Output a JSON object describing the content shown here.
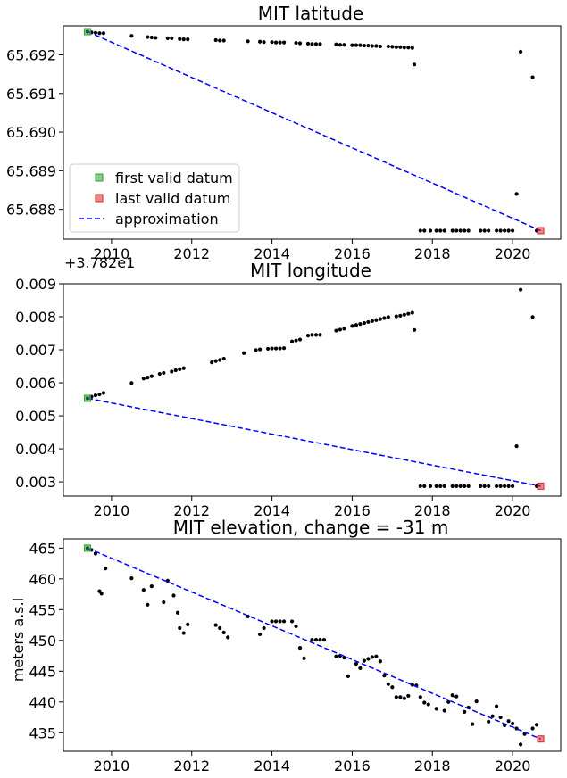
{
  "chart_data": [
    {
      "type": "scatter",
      "title": "MIT latitude",
      "xlim": [
        2008.8,
        2021.2
      ],
      "ylim": [
        65.68723,
        65.69275
      ],
      "x_ticks": [
        "2010",
        "2012",
        "2014",
        "2016",
        "2018",
        "2020"
      ],
      "y_ticks": [
        "65.688",
        "65.689",
        "65.690",
        "65.691",
        "65.692"
      ],
      "y_offset_label": "",
      "ylabel": "",
      "legend": {
        "placement": "lower-left",
        "entries": [
          {
            "label": "first valid datum",
            "color": "#2ca02c",
            "marker": "square"
          },
          {
            "label": "last valid datum",
            "color": "#d62728",
            "marker": "square"
          },
          {
            "label": "approximation",
            "color": "#0000ff",
            "marker": "dashed-line"
          }
        ]
      },
      "points": [
        [
          2009.4,
          65.6926
        ],
        [
          2009.5,
          65.69258
        ],
        [
          2009.6,
          65.69257
        ],
        [
          2009.7,
          65.69256
        ],
        [
          2009.8,
          65.69256
        ],
        [
          2010.5,
          65.69249
        ],
        [
          2010.9,
          65.69246
        ],
        [
          2011.0,
          65.69245
        ],
        [
          2011.1,
          65.69244
        ],
        [
          2011.4,
          65.69243
        ],
        [
          2011.5,
          65.69243
        ],
        [
          2011.7,
          65.69241
        ],
        [
          2011.8,
          65.6924
        ],
        [
          2011.9,
          65.6924
        ],
        [
          2012.6,
          65.69238
        ],
        [
          2012.7,
          65.69237
        ],
        [
          2012.8,
          65.69237
        ],
        [
          2013.4,
          65.69235
        ],
        [
          2013.7,
          65.69234
        ],
        [
          2013.8,
          65.69233
        ],
        [
          2014.0,
          65.69233
        ],
        [
          2014.1,
          65.69232
        ],
        [
          2014.2,
          65.69232
        ],
        [
          2014.3,
          65.69232
        ],
        [
          2014.6,
          65.69231
        ],
        [
          2014.7,
          65.6923
        ],
        [
          2014.9,
          65.69229
        ],
        [
          2015.0,
          65.69228
        ],
        [
          2015.1,
          65.69228
        ],
        [
          2015.2,
          65.69228
        ],
        [
          2015.6,
          65.69227
        ],
        [
          2015.7,
          65.69226
        ],
        [
          2015.8,
          65.69226
        ],
        [
          2016.0,
          65.69225
        ],
        [
          2016.1,
          65.69225
        ],
        [
          2016.2,
          65.69225
        ],
        [
          2016.3,
          65.69224
        ],
        [
          2016.4,
          65.69224
        ],
        [
          2016.5,
          65.69223
        ],
        [
          2016.6,
          65.69223
        ],
        [
          2016.7,
          65.69222
        ],
        [
          2016.9,
          65.69222
        ],
        [
          2017.0,
          65.69221
        ],
        [
          2017.1,
          65.6922
        ],
        [
          2017.2,
          65.6922
        ],
        [
          2017.3,
          65.69219
        ],
        [
          2017.4,
          65.69219
        ],
        [
          2017.5,
          65.69218
        ],
        [
          2017.55,
          65.69175
        ],
        [
          2017.7,
          65.68745
        ],
        [
          2017.8,
          65.68745
        ],
        [
          2017.95,
          65.68745
        ],
        [
          2018.1,
          65.68745
        ],
        [
          2018.2,
          65.68745
        ],
        [
          2018.3,
          65.68745
        ],
        [
          2018.5,
          65.68745
        ],
        [
          2018.6,
          65.68745
        ],
        [
          2018.7,
          65.68745
        ],
        [
          2018.8,
          65.68745
        ],
        [
          2018.9,
          65.68745
        ],
        [
          2019.2,
          65.68745
        ],
        [
          2019.3,
          65.68745
        ],
        [
          2019.4,
          65.68745
        ],
        [
          2019.6,
          65.68745
        ],
        [
          2019.7,
          65.68745
        ],
        [
          2019.8,
          65.68745
        ],
        [
          2019.9,
          65.68745
        ],
        [
          2020.0,
          65.68745
        ],
        [
          2020.1,
          65.6884
        ],
        [
          2020.2,
          65.69208
        ],
        [
          2020.5,
          65.69142
        ],
        [
          2020.6,
          65.68745
        ]
      ],
      "first_valid": [
        2009.4,
        65.6926
      ],
      "last_valid": [
        2020.7,
        65.68745
      ]
    },
    {
      "type": "scatter",
      "title": "MIT longitude",
      "xlim": [
        2008.8,
        2021.2
      ],
      "ylim": [
        0.00257,
        0.009
      ],
      "x_ticks": [
        "2010",
        "2012",
        "2014",
        "2016",
        "2018",
        "2020"
      ],
      "y_ticks": [
        "0.003",
        "0.004",
        "0.005",
        "0.006",
        "0.007",
        "0.008",
        "0.009"
      ],
      "y_offset_label": "+3.782e1",
      "ylabel": "",
      "points": [
        [
          2009.4,
          0.00553
        ],
        [
          2009.5,
          0.00558
        ],
        [
          2009.6,
          0.00562
        ],
        [
          2009.7,
          0.00565
        ],
        [
          2009.8,
          0.00569
        ],
        [
          2010.5,
          0.00599
        ],
        [
          2010.8,
          0.00613
        ],
        [
          2010.9,
          0.00616
        ],
        [
          2011.0,
          0.0062
        ],
        [
          2011.2,
          0.00627
        ],
        [
          2011.3,
          0.0063
        ],
        [
          2011.5,
          0.00634
        ],
        [
          2011.6,
          0.00638
        ],
        [
          2011.7,
          0.00641
        ],
        [
          2011.8,
          0.00644
        ],
        [
          2012.5,
          0.00662
        ],
        [
          2012.6,
          0.00666
        ],
        [
          2012.7,
          0.00669
        ],
        [
          2012.8,
          0.00673
        ],
        [
          2013.3,
          0.0069
        ],
        [
          2013.6,
          0.00699
        ],
        [
          2013.7,
          0.00701
        ],
        [
          2013.9,
          0.00703
        ],
        [
          2014.0,
          0.00704
        ],
        [
          2014.1,
          0.00704
        ],
        [
          2014.2,
          0.00704
        ],
        [
          2014.3,
          0.00705
        ],
        [
          2014.5,
          0.00725
        ],
        [
          2014.6,
          0.00728
        ],
        [
          2014.7,
          0.00731
        ],
        [
          2014.9,
          0.00743
        ],
        [
          2015.0,
          0.00745
        ],
        [
          2015.1,
          0.00745
        ],
        [
          2015.2,
          0.00745
        ],
        [
          2015.6,
          0.00758
        ],
        [
          2015.7,
          0.00761
        ],
        [
          2015.8,
          0.00764
        ],
        [
          2016.0,
          0.00772
        ],
        [
          2016.1,
          0.00775
        ],
        [
          2016.2,
          0.00778
        ],
        [
          2016.3,
          0.00781
        ],
        [
          2016.4,
          0.00784
        ],
        [
          2016.5,
          0.00787
        ],
        [
          2016.6,
          0.0079
        ],
        [
          2016.7,
          0.00793
        ],
        [
          2016.8,
          0.00796
        ],
        [
          2016.9,
          0.00799
        ],
        [
          2017.1,
          0.00801
        ],
        [
          2017.2,
          0.00803
        ],
        [
          2017.3,
          0.00806
        ],
        [
          2017.4,
          0.00809
        ],
        [
          2017.5,
          0.00812
        ],
        [
          2017.55,
          0.0076
        ],
        [
          2017.7,
          0.00287
        ],
        [
          2017.8,
          0.00287
        ],
        [
          2017.95,
          0.00287
        ],
        [
          2018.1,
          0.00287
        ],
        [
          2018.2,
          0.00287
        ],
        [
          2018.3,
          0.00287
        ],
        [
          2018.5,
          0.00287
        ],
        [
          2018.6,
          0.00287
        ],
        [
          2018.7,
          0.00287
        ],
        [
          2018.8,
          0.00287
        ],
        [
          2018.9,
          0.00287
        ],
        [
          2019.2,
          0.00287
        ],
        [
          2019.3,
          0.00287
        ],
        [
          2019.4,
          0.00287
        ],
        [
          2019.6,
          0.00287
        ],
        [
          2019.7,
          0.00287
        ],
        [
          2019.8,
          0.00287
        ],
        [
          2019.9,
          0.00287
        ],
        [
          2020.0,
          0.00287
        ],
        [
          2020.1,
          0.00408
        ],
        [
          2020.2,
          0.00882
        ],
        [
          2020.5,
          0.00799
        ],
        [
          2020.6,
          0.00287
        ]
      ],
      "first_valid": [
        2009.4,
        0.00553
      ],
      "last_valid": [
        2020.7,
        0.00287
      ]
    },
    {
      "type": "scatter",
      "title": "MIT elevation, change = -31 m",
      "xlim": [
        2008.8,
        2021.2
      ],
      "ylim": [
        432,
        466.5
      ],
      "x_ticks": [
        "2010",
        "2012",
        "2014",
        "2016",
        "2018",
        "2020"
      ],
      "y_ticks": [
        "435",
        "440",
        "445",
        "450",
        "455",
        "460",
        "465"
      ],
      "y_offset_label": "",
      "ylabel": "meters a.s.l",
      "points": [
        [
          2009.4,
          465
        ],
        [
          2009.5,
          464.7
        ],
        [
          2009.6,
          464.1
        ],
        [
          2009.7,
          458
        ],
        [
          2009.75,
          457.6
        ],
        [
          2009.85,
          461.7
        ],
        [
          2010.5,
          460.1
        ],
        [
          2010.8,
          458.2
        ],
        [
          2010.9,
          455.8
        ],
        [
          2011.0,
          458.8
        ],
        [
          2011.3,
          456.2
        ],
        [
          2011.4,
          459.7
        ],
        [
          2011.55,
          457.3
        ],
        [
          2011.65,
          454.5
        ],
        [
          2011.7,
          452
        ],
        [
          2011.8,
          451.2
        ],
        [
          2011.9,
          452.6
        ],
        [
          2012.6,
          452.5
        ],
        [
          2012.7,
          452
        ],
        [
          2012.8,
          451.3
        ],
        [
          2012.9,
          450.5
        ],
        [
          2013.4,
          453.9
        ],
        [
          2013.7,
          451
        ],
        [
          2013.8,
          452
        ],
        [
          2014.0,
          453.1
        ],
        [
          2014.1,
          453.1
        ],
        [
          2014.2,
          453.1
        ],
        [
          2014.3,
          453.1
        ],
        [
          2014.5,
          453.1
        ],
        [
          2014.6,
          452.3
        ],
        [
          2014.7,
          448.8
        ],
        [
          2014.8,
          447.1
        ],
        [
          2015.0,
          450.1
        ],
        [
          2015.1,
          450.1
        ],
        [
          2015.2,
          450.1
        ],
        [
          2015.3,
          450.1
        ],
        [
          2015.6,
          447.4
        ],
        [
          2015.7,
          447.5
        ],
        [
          2015.8,
          447.2
        ],
        [
          2015.9,
          444.2
        ],
        [
          2016.1,
          446.2
        ],
        [
          2016.2,
          445.5
        ],
        [
          2016.3,
          446.7
        ],
        [
          2016.4,
          447
        ],
        [
          2016.5,
          447.3
        ],
        [
          2016.6,
          447.4
        ],
        [
          2016.7,
          446.6
        ],
        [
          2016.8,
          444.3
        ],
        [
          2016.9,
          442.9
        ],
        [
          2017.0,
          442.4
        ],
        [
          2017.1,
          440.8
        ],
        [
          2017.2,
          440.8
        ],
        [
          2017.3,
          440.6
        ],
        [
          2017.4,
          441
        ],
        [
          2017.5,
          442.8
        ],
        [
          2017.6,
          442.7
        ],
        [
          2017.7,
          440.8
        ],
        [
          2017.8,
          439.9
        ],
        [
          2017.9,
          439.6
        ],
        [
          2018.1,
          438.9
        ],
        [
          2018.3,
          438.6
        ],
        [
          2018.4,
          440
        ],
        [
          2018.5,
          441.1
        ],
        [
          2018.6,
          440.9
        ],
        [
          2018.8,
          438.4
        ],
        [
          2018.9,
          439.1
        ],
        [
          2019.0,
          436.4
        ],
        [
          2019.1,
          440.1
        ],
        [
          2019.4,
          436.8
        ],
        [
          2019.5,
          437.7
        ],
        [
          2019.6,
          439.3
        ],
        [
          2019.7,
          437.5
        ],
        [
          2019.8,
          436.2
        ],
        [
          2019.9,
          436.9
        ],
        [
          2020.0,
          436.5
        ],
        [
          2020.1,
          435.7
        ],
        [
          2020.2,
          433.1
        ],
        [
          2020.3,
          434.8
        ],
        [
          2020.5,
          435.7
        ],
        [
          2020.6,
          436.3
        ]
      ],
      "first_valid": [
        2009.4,
        465
      ],
      "last_valid": [
        2020.7,
        434
      ]
    }
  ]
}
